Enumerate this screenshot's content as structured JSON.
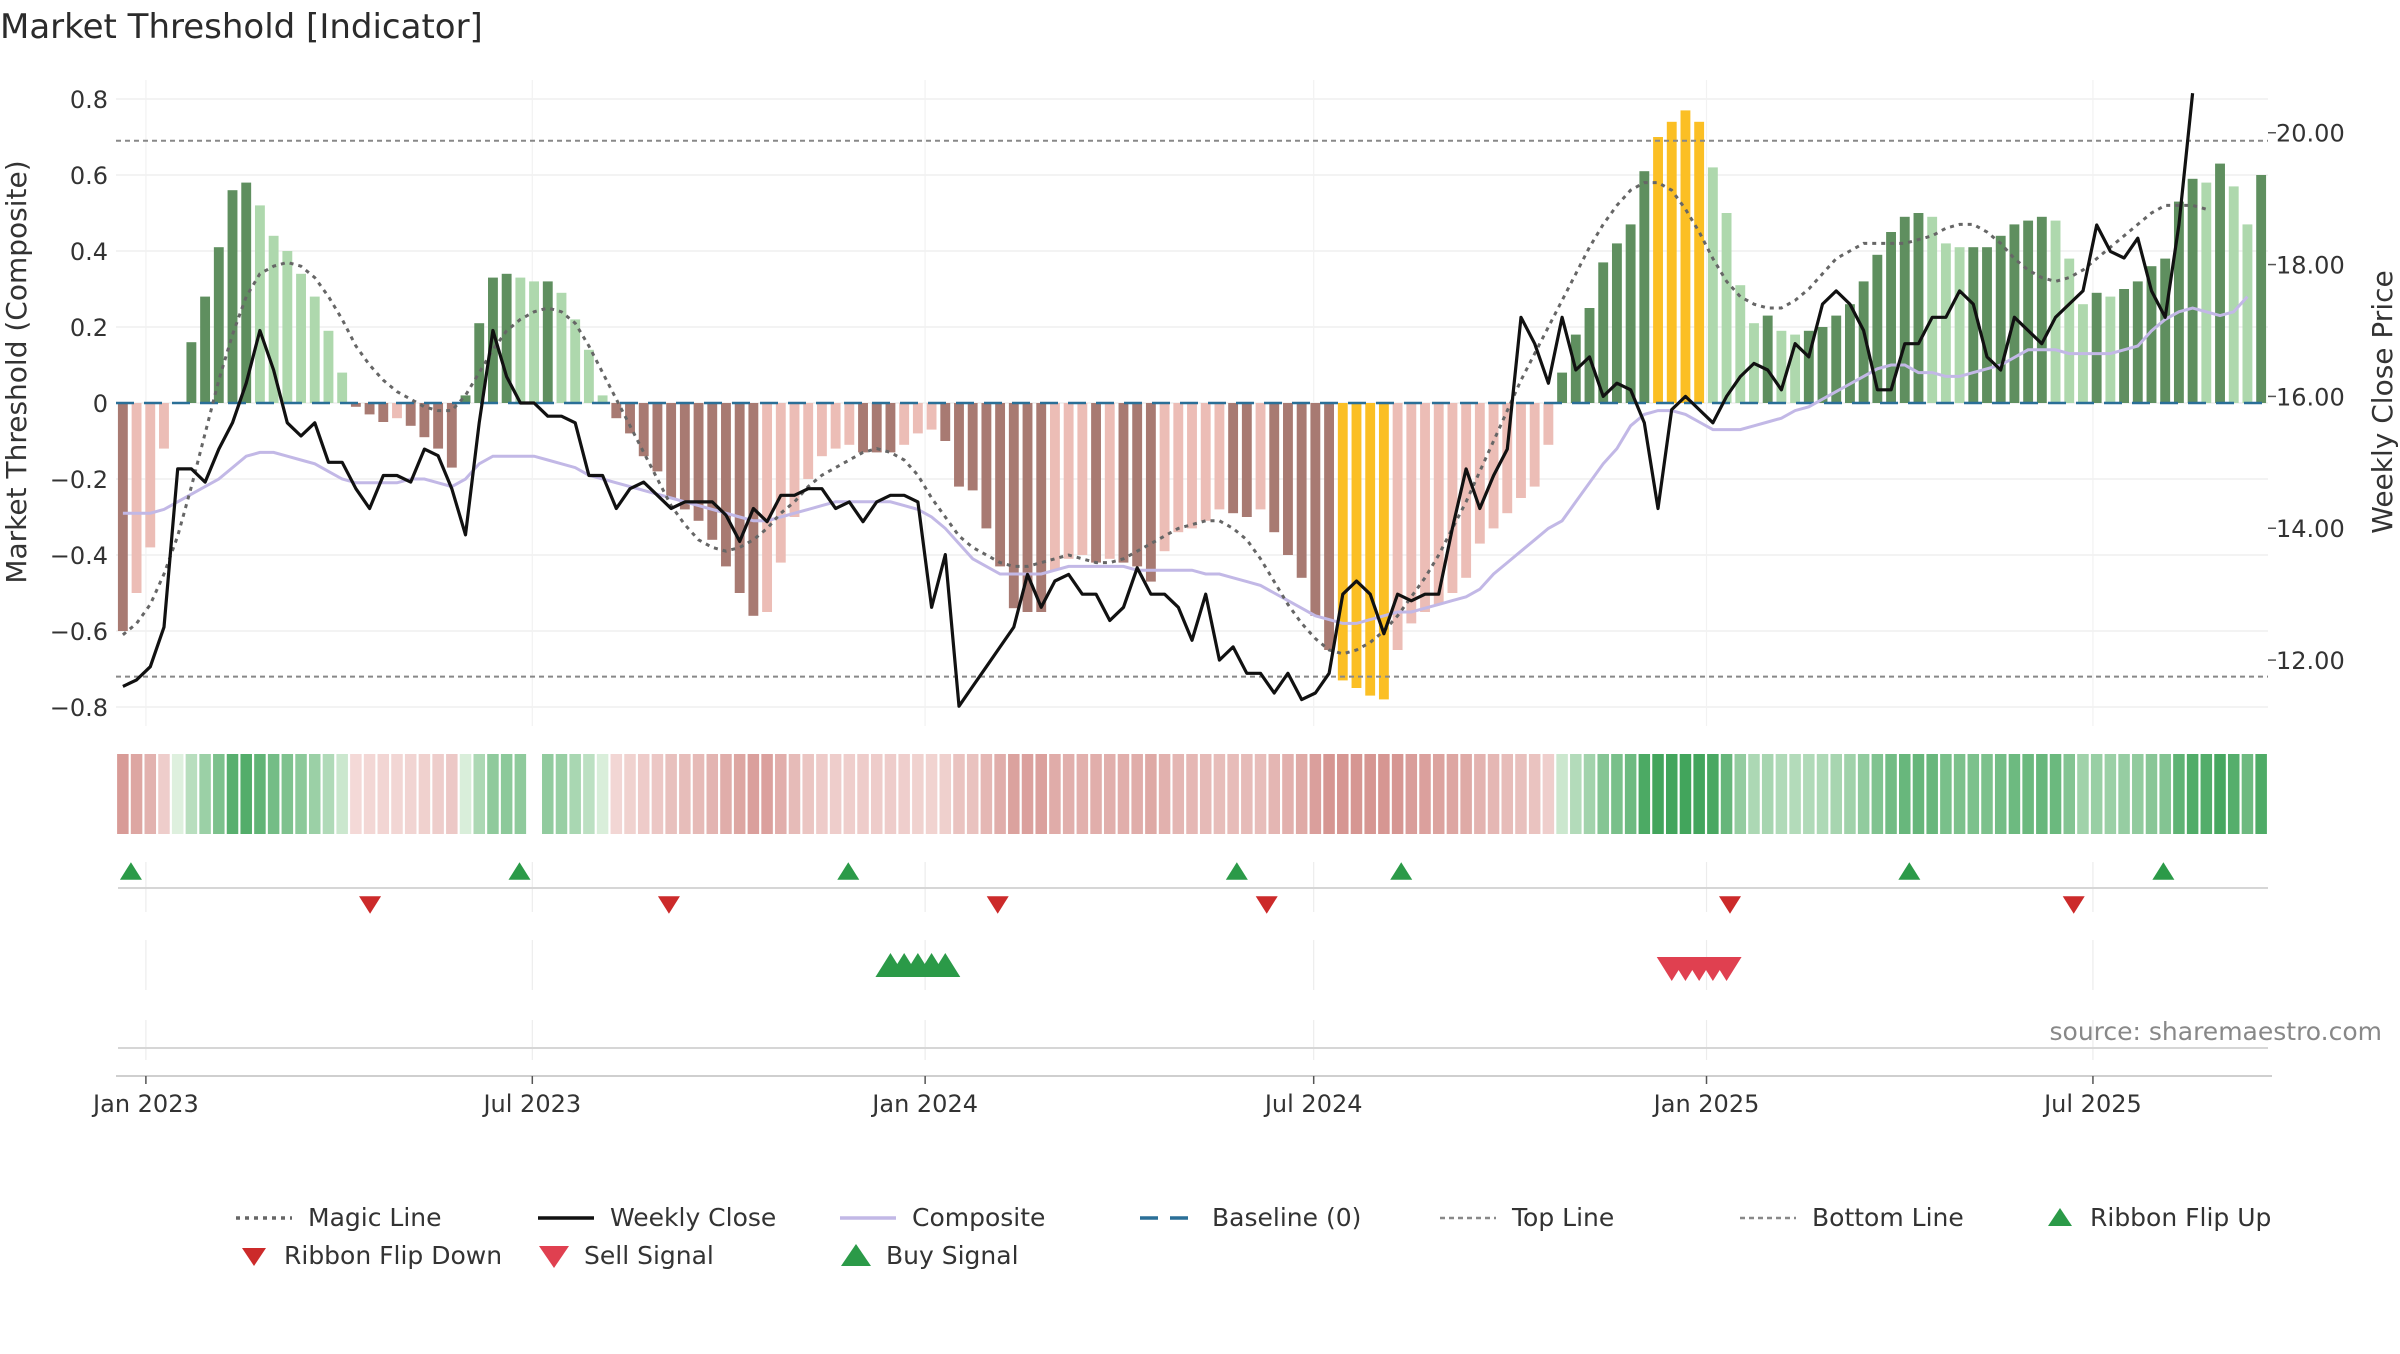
{
  "chart_data": {
    "type": "bar+line",
    "title": "Market Threshold [Indicator]",
    "ylabel_left": "Market Threshold (Composite)",
    "ylabel_right": "Weekly Close Price",
    "ylim_left": [
      -0.85,
      0.85
    ],
    "ylim_right": [
      11.0,
      20.8
    ],
    "yticks_left": [
      0.8,
      0.6,
      0.4,
      0.2,
      0,
      -0.2,
      -0.4,
      -0.6,
      -0.8
    ],
    "ytick_labels_left": [
      "0.8",
      "0.6",
      "0.4",
      "0.2",
      "0",
      "−0.2",
      "−0.4",
      "−0.6",
      "−0.8"
    ],
    "yticks_right": [
      20.0,
      18.0,
      16.0,
      14.0,
      12.0
    ],
    "ytick_labels_right": [
      "20.00",
      "18.00",
      "16.00",
      "14.00",
      "12.00"
    ],
    "x_start": "2022-12-18",
    "x_end": "2025-09-21",
    "xticks": [
      "2023-01-01",
      "2023-07-01",
      "2024-01-01",
      "2024-07-01",
      "2025-01-01",
      "2025-07-01"
    ],
    "xtick_labels": [
      "Jan 2023",
      "Jul 2023",
      "Jan 2024",
      "Jul 2024",
      "Jan 2025",
      "Jul 2025"
    ],
    "top_line": 0.69,
    "bottom_line": -0.72,
    "baseline": 0,
    "composite_bars": [
      -0.6,
      -0.5,
      -0.38,
      -0.12,
      0.0,
      0.16,
      0.28,
      0.41,
      0.56,
      0.58,
      0.52,
      0.44,
      0.4,
      0.34,
      0.28,
      0.19,
      0.08,
      -0.01,
      -0.03,
      -0.05,
      -0.04,
      -0.06,
      -0.09,
      -0.12,
      -0.17,
      0.02,
      0.21,
      0.33,
      0.34,
      0.33,
      0.32,
      0.32,
      0.29,
      0.22,
      0.14,
      0.02,
      -0.04,
      -0.08,
      -0.14,
      -0.18,
      -0.25,
      -0.28,
      -0.31,
      -0.36,
      -0.43,
      -0.5,
      -0.56,
      -0.55,
      -0.42,
      -0.3,
      -0.2,
      -0.14,
      -0.12,
      -0.11,
      -0.13,
      -0.13,
      -0.13,
      -0.11,
      -0.08,
      -0.07,
      -0.1,
      -0.22,
      -0.23,
      -0.33,
      -0.43,
      -0.54,
      -0.55,
      -0.55,
      -0.44,
      -0.41,
      -0.4,
      -0.42,
      -0.41,
      -0.42,
      -0.43,
      -0.47,
      -0.39,
      -0.34,
      -0.33,
      -0.31,
      -0.28,
      -0.29,
      -0.3,
      -0.28,
      -0.34,
      -0.4,
      -0.46,
      -0.56,
      -0.65,
      -0.73,
      -0.75,
      -0.77,
      -0.78,
      -0.65,
      -0.58,
      -0.55,
      -0.53,
      -0.5,
      -0.46,
      -0.37,
      -0.33,
      -0.29,
      -0.25,
      -0.22,
      -0.11,
      0.08,
      0.18,
      0.25,
      0.37,
      0.42,
      0.47,
      0.61,
      0.7,
      0.74,
      0.77,
      0.74,
      0.62,
      0.5,
      0.31,
      0.21,
      0.23,
      0.19,
      0.18,
      0.19,
      0.2,
      0.23,
      0.26,
      0.32,
      0.39,
      0.45,
      0.49,
      0.5,
      0.49,
      0.42,
      0.41,
      0.41,
      0.41,
      0.44,
      0.47,
      0.48,
      0.49,
      0.48,
      0.38,
      0.26,
      0.29,
      0.28,
      0.3,
      0.32,
      0.36,
      0.38,
      0.53,
      0.59,
      0.58,
      0.63,
      0.57,
      0.47,
      0.6
    ],
    "magic_line": [
      -0.61,
      -0.58,
      -0.53,
      -0.45,
      -0.35,
      -0.22,
      -0.08,
      0.06,
      0.18,
      0.28,
      0.34,
      0.36,
      0.37,
      0.36,
      0.33,
      0.28,
      0.22,
      0.15,
      0.1,
      0.06,
      0.03,
      0.01,
      -0.01,
      -0.02,
      -0.02,
      0.02,
      0.08,
      0.14,
      0.19,
      0.22,
      0.24,
      0.25,
      0.24,
      0.21,
      0.15,
      0.08,
      0.01,
      -0.06,
      -0.13,
      -0.2,
      -0.27,
      -0.32,
      -0.36,
      -0.38,
      -0.39,
      -0.38,
      -0.36,
      -0.33,
      -0.29,
      -0.26,
      -0.22,
      -0.19,
      -0.17,
      -0.15,
      -0.13,
      -0.12,
      -0.13,
      -0.15,
      -0.19,
      -0.25,
      -0.3,
      -0.35,
      -0.38,
      -0.4,
      -0.42,
      -0.43,
      -0.43,
      -0.42,
      -0.41,
      -0.4,
      -0.41,
      -0.42,
      -0.42,
      -0.41,
      -0.39,
      -0.37,
      -0.35,
      -0.33,
      -0.32,
      -0.31,
      -0.31,
      -0.33,
      -0.36,
      -0.41,
      -0.47,
      -0.53,
      -0.58,
      -0.62,
      -0.65,
      -0.66,
      -0.65,
      -0.63,
      -0.6,
      -0.56,
      -0.51,
      -0.46,
      -0.4,
      -0.33,
      -0.26,
      -0.18,
      -0.1,
      -0.02,
      0.06,
      0.13,
      0.2,
      0.27,
      0.34,
      0.41,
      0.47,
      0.52,
      0.56,
      0.58,
      0.58,
      0.56,
      0.51,
      0.45,
      0.38,
      0.32,
      0.28,
      0.26,
      0.25,
      0.25,
      0.27,
      0.3,
      0.34,
      0.38,
      0.4,
      0.42,
      0.42,
      0.42,
      0.42,
      0.43,
      0.44,
      0.46,
      0.47,
      0.47,
      0.45,
      0.42,
      0.38,
      0.35,
      0.33,
      0.32,
      0.33,
      0.35,
      0.38,
      0.41,
      0.44,
      0.47,
      0.5,
      0.52,
      0.52,
      0.52,
      0.51
    ],
    "composite_line": [
      -0.29,
      -0.29,
      -0.29,
      -0.28,
      -0.26,
      -0.24,
      -0.22,
      -0.2,
      -0.17,
      -0.14,
      -0.13,
      -0.13,
      -0.14,
      -0.15,
      -0.16,
      -0.18,
      -0.2,
      -0.21,
      -0.21,
      -0.21,
      -0.21,
      -0.2,
      -0.2,
      -0.21,
      -0.22,
      -0.2,
      -0.16,
      -0.14,
      -0.14,
      -0.14,
      -0.14,
      -0.15,
      -0.16,
      -0.17,
      -0.19,
      -0.2,
      -0.21,
      -0.22,
      -0.23,
      -0.24,
      -0.25,
      -0.26,
      -0.27,
      -0.28,
      -0.29,
      -0.3,
      -0.31,
      -0.31,
      -0.3,
      -0.29,
      -0.28,
      -0.27,
      -0.26,
      -0.26,
      -0.26,
      -0.26,
      -0.26,
      -0.27,
      -0.28,
      -0.3,
      -0.33,
      -0.37,
      -0.41,
      -0.43,
      -0.45,
      -0.45,
      -0.45,
      -0.45,
      -0.44,
      -0.43,
      -0.43,
      -0.43,
      -0.43,
      -0.43,
      -0.44,
      -0.44,
      -0.44,
      -0.44,
      -0.44,
      -0.45,
      -0.45,
      -0.46,
      -0.47,
      -0.48,
      -0.5,
      -0.52,
      -0.54,
      -0.56,
      -0.57,
      -0.58,
      -0.58,
      -0.57,
      -0.56,
      -0.55,
      -0.55,
      -0.54,
      -0.53,
      -0.52,
      -0.51,
      -0.49,
      -0.45,
      -0.42,
      -0.39,
      -0.36,
      -0.33,
      -0.31,
      -0.26,
      -0.21,
      -0.16,
      -0.12,
      -0.06,
      -0.03,
      -0.02,
      -0.02,
      -0.03,
      -0.05,
      -0.07,
      -0.07,
      -0.07,
      -0.06,
      -0.05,
      -0.04,
      -0.02,
      -0.01,
      0.01,
      0.03,
      0.05,
      0.07,
      0.09,
      0.1,
      0.1,
      0.08,
      0.08,
      0.07,
      0.07,
      0.08,
      0.09,
      0.1,
      0.12,
      0.14,
      0.14,
      0.14,
      0.13,
      0.13,
      0.13,
      0.13,
      0.14,
      0.15,
      0.19,
      0.22,
      0.24,
      0.25,
      0.24,
      0.23,
      0.24,
      0.28
    ],
    "weekly_close": [
      11.6,
      11.7,
      11.9,
      12.5,
      14.9,
      14.9,
      14.7,
      15.2,
      15.6,
      16.2,
      17.0,
      16.4,
      15.6,
      15.4,
      15.6,
      15.0,
      15.0,
      14.6,
      14.3,
      14.8,
      14.8,
      14.7,
      15.2,
      15.1,
      14.6,
      13.9,
      15.6,
      17.0,
      16.3,
      15.9,
      15.9,
      15.7,
      15.7,
      15.6,
      14.8,
      14.8,
      14.3,
      14.6,
      14.7,
      14.5,
      14.3,
      14.4,
      14.4,
      14.4,
      14.2,
      13.8,
      14.3,
      14.1,
      14.5,
      14.5,
      14.6,
      14.6,
      14.3,
      14.4,
      14.1,
      14.4,
      14.5,
      14.5,
      14.4,
      12.8,
      13.6,
      11.3,
      11.6,
      11.9,
      12.2,
      12.5,
      13.3,
      12.8,
      13.2,
      13.3,
      13.0,
      13.0,
      12.6,
      12.8,
      13.4,
      13.0,
      13.0,
      12.8,
      12.3,
      13.0,
      12.0,
      12.2,
      11.8,
      11.8,
      11.5,
      11.8,
      11.4,
      11.5,
      11.8,
      13.0,
      13.2,
      13.0,
      12.4,
      13.0,
      12.9,
      13.0,
      13.0,
      14.0,
      14.9,
      14.3,
      14.8,
      15.2,
      17.2,
      16.8,
      16.2,
      17.2,
      16.4,
      16.6,
      16.0,
      16.2,
      16.1,
      15.6,
      14.3,
      15.8,
      16.0,
      15.8,
      15.6,
      16.0,
      16.3,
      16.5,
      16.4,
      16.1,
      16.8,
      16.6,
      17.4,
      17.6,
      17.4,
      17.0,
      16.1,
      16.1,
      16.8,
      16.8,
      17.2,
      17.2,
      17.6,
      17.4,
      16.6,
      16.4,
      17.2,
      17.0,
      16.8,
      17.2,
      17.4,
      17.6,
      18.6,
      18.2,
      18.1,
      18.4,
      17.6,
      17.2,
      18.6,
      20.6
    ],
    "buy_signals_week": [
      56,
      57,
      58,
      59,
      60
    ],
    "sell_signals_week": [
      113,
      114,
      115,
      116,
      117
    ],
    "ribbon_flip_up_dates": [
      "2022-12-25",
      "2023-06-25",
      "2023-11-26",
      "2024-05-26",
      "2024-08-11",
      "2025-04-06",
      "2025-08-03"
    ],
    "ribbon_flip_down_dates": [
      "2023-04-16",
      "2023-09-03",
      "2024-02-04",
      "2024-06-09",
      "2025-01-12",
      "2025-06-22"
    ],
    "ribbon_gap_week": 30,
    "legend": [
      "Magic Line",
      "Weekly Close",
      "Composite",
      "Baseline (0)",
      "Top Line",
      "Bottom Line",
      "Ribbon Flip Up",
      "Ribbon Flip Down",
      "Sell Signal",
      "Buy Signal"
    ],
    "legend_placement": "bottom",
    "grid": true,
    "source": "source: sharemaestro.com"
  },
  "colors": {
    "strong_up": "#5f8f5f",
    "weak_up": "#aed8ad",
    "strong_down": "#a87a72",
    "weak_down": "#ecbdb6",
    "extreme": "#fbbf24",
    "weekly_close": "#111111",
    "magic_line": "#666666",
    "composite": "#c2b8e6",
    "baseline": "#2a6f97",
    "top_bottom": "#888888",
    "flip_up": "#2b9a48",
    "flip_down": "#cc2a2a",
    "sell": "#e04050",
    "buy": "#2b9a48"
  }
}
